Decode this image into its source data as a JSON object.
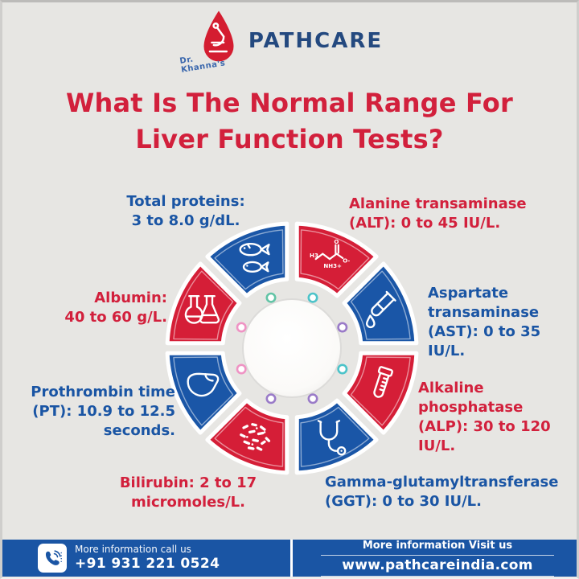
{
  "brand": {
    "name": "PATHCARE",
    "tagline": "Dr. Khanna's"
  },
  "title": {
    "line1": "What Is The Normal Range For",
    "line2": "Liver Function Tests?"
  },
  "colors": {
    "red": "#d51e37",
    "blue": "#1a56a7",
    "background": "#e7e6e3",
    "text_red": "#d2203c",
    "text_blue": "#1a55a4",
    "footer_bar": "#1a55a4"
  },
  "wheel": {
    "segments": [
      {
        "name": "alt",
        "icon": "molecule-icon",
        "color": "red",
        "dot": "#4cc3c9",
        "label": "Alanine transaminase\n(ALT): 0 to 45 IU/L."
      },
      {
        "name": "ast",
        "icon": "test-tube-icon",
        "color": "blue",
        "dot": "#9a7bc8",
        "label": "Aspartate\ntransaminase\n(AST): 0 to 35 IU/L."
      },
      {
        "name": "alp",
        "icon": "blood-tube-icon",
        "color": "red",
        "dot": "#4cc3c9",
        "label": "Alkaline\nphosphatase\n(ALP): 30 to 120 IU/L."
      },
      {
        "name": "ggt",
        "icon": "stethoscope-icon",
        "color": "blue",
        "dot": "#9a7bc8",
        "label": "Gamma-glutamyltransferase\n(GGT): 0 to 30 IU/L."
      },
      {
        "name": "bilirubin",
        "icon": "bacteria-icon",
        "color": "red",
        "dot": "#9a7bc8",
        "label": "Bilirubin: 2 to 17\nmicromoles/L."
      },
      {
        "name": "pt",
        "icon": "liver-icon",
        "color": "blue",
        "dot": "#ef93c4",
        "label": "Prothrombin time\n(PT): 10.9 to 12.5\nseconds."
      },
      {
        "name": "albumin",
        "icon": "flasks-icon",
        "color": "red",
        "dot": "#ef93c4",
        "label": "Albumin:\n40 to 60 g/L."
      },
      {
        "name": "total-proteins",
        "icon": "fish-icon",
        "color": "blue",
        "dot": "#62c4a6",
        "label": "Total proteins:\n3 to 8.0 g/dL."
      }
    ]
  },
  "footer": {
    "call": {
      "caption": "More information call us",
      "phone": "+91 931 221 0524"
    },
    "visit": {
      "caption": "More information Visit us",
      "url": "www.pathcareindia.com"
    }
  }
}
